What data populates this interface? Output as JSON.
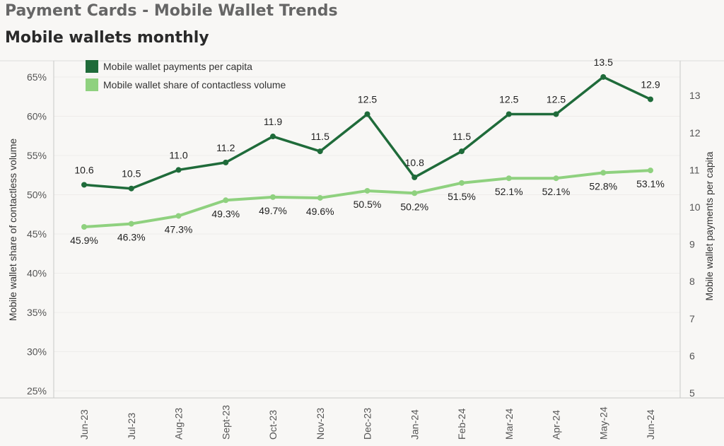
{
  "header": {
    "title": "Payment Cards - Mobile Wallet Trends",
    "subtitle": "Mobile wallets monthly"
  },
  "chart_data": {
    "type": "line",
    "categories": [
      "Jun-23",
      "Jul-23",
      "Aug-23",
      "Sept-23",
      "Oct-23",
      "Nov-23",
      "Dec-23",
      "Jan-24",
      "Feb-24",
      "Mar-24",
      "Apr-24",
      "May-24",
      "Jun-24"
    ],
    "series": [
      {
        "name": "Mobile wallet payments per capita",
        "axis": "right",
        "color": "#1f6b3a",
        "values": [
          10.6,
          10.5,
          11.0,
          11.2,
          11.9,
          11.5,
          12.5,
          10.8,
          11.5,
          12.5,
          12.5,
          13.5,
          12.9
        ],
        "labels": [
          "10.6",
          "10.5",
          "11.0",
          "11.2",
          "11.9",
          "11.5",
          "12.5",
          "10.8",
          "11.5",
          "12.5",
          "12.5",
          "13.5",
          "12.9"
        ]
      },
      {
        "name": "Mobile wallet share of contactless volume",
        "axis": "left",
        "color": "#8fd17f",
        "values": [
          45.9,
          46.3,
          47.3,
          49.3,
          49.7,
          49.6,
          50.5,
          50.2,
          51.5,
          52.1,
          52.1,
          52.8,
          53.1
        ],
        "labels": [
          "45.9%",
          "46.3%",
          "47.3%",
          "49.3%",
          "49.7%",
          "49.6%",
          "50.5%",
          "50.2%",
          "51.5%",
          "52.1%",
          "52.1%",
          "52.8%",
          "53.1%"
        ]
      }
    ],
    "ylabel_left": "Mobile wallet share of contactless volume",
    "ylabel_right": "Mobile wallet payments per capita",
    "ylim_left": [
      25,
      65
    ],
    "yticks_left": [
      "25%",
      "30%",
      "35%",
      "40%",
      "45%",
      "50%",
      "55%",
      "60%",
      "65%"
    ],
    "ylim_right": [
      5,
      13
    ],
    "yticks_right": [
      "5",
      "6",
      "7",
      "8",
      "9",
      "10",
      "11",
      "12",
      "13"
    ],
    "legend": "top-left",
    "grid": true
  }
}
